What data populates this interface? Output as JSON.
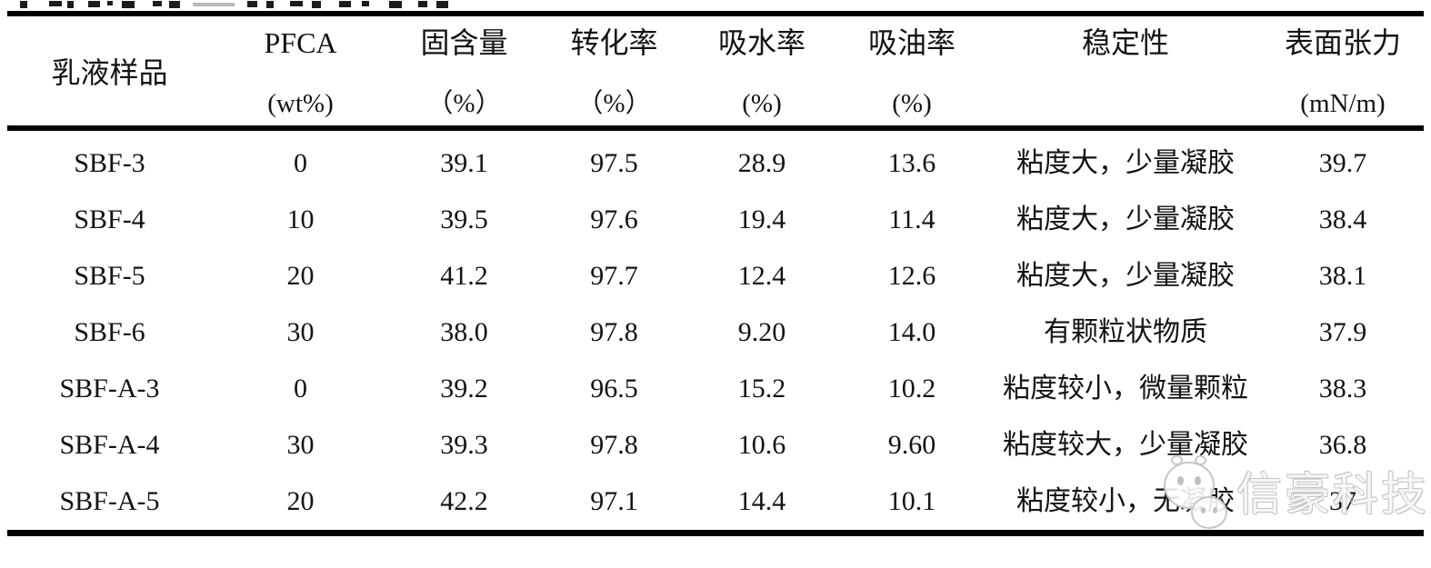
{
  "table": {
    "columns": [
      {
        "line1": "乳液样品",
        "line2": ""
      },
      {
        "line1": "PFCA",
        "line2": "(wt%)"
      },
      {
        "line1": "固含量",
        "line2": "（%）"
      },
      {
        "line1": "转化率",
        "line2": "（%）"
      },
      {
        "line1": "吸水率",
        "line2": "(%)"
      },
      {
        "line1": "吸油率",
        "line2": "(%)"
      },
      {
        "line1": "稳定性",
        "line2": ""
      },
      {
        "line1": "表面张力",
        "line2": "(mN/m)"
      }
    ],
    "rows": [
      [
        "SBF-3",
        "0",
        "39.1",
        "97.5",
        "28.9",
        "13.6",
        "粘度大，少量凝胶",
        "39.7"
      ],
      [
        "SBF-4",
        "10",
        "39.5",
        "97.6",
        "19.4",
        "11.4",
        "粘度大，少量凝胶",
        "38.4"
      ],
      [
        "SBF-5",
        "20",
        "41.2",
        "97.7",
        "12.4",
        "12.6",
        "粘度大，少量凝胶",
        "38.1"
      ],
      [
        "SBF-6",
        "30",
        "38.0",
        "97.8",
        "9.20",
        "14.0",
        "有颗粒状物质",
        "37.9"
      ],
      [
        "SBF-A-3",
        "0",
        "39.2",
        "96.5",
        "15.2",
        "10.2",
        "粘度较小，微量颗粒",
        "38.3"
      ],
      [
        "SBF-A-4",
        "30",
        "39.3",
        "97.8",
        "10.6",
        "9.60",
        "粘度较大，少量凝胶",
        "36.8"
      ],
      [
        "SBF-A-5",
        "20",
        "42.2",
        "97.1",
        "14.4",
        "10.1",
        "粘度较小，无凝胶",
        "37"
      ]
    ]
  },
  "watermark": {
    "text": "信豪科技",
    "color": "#c6c6c6"
  },
  "colors": {
    "rule": "#000000",
    "text": "#131313",
    "background": "#ffffff"
  }
}
